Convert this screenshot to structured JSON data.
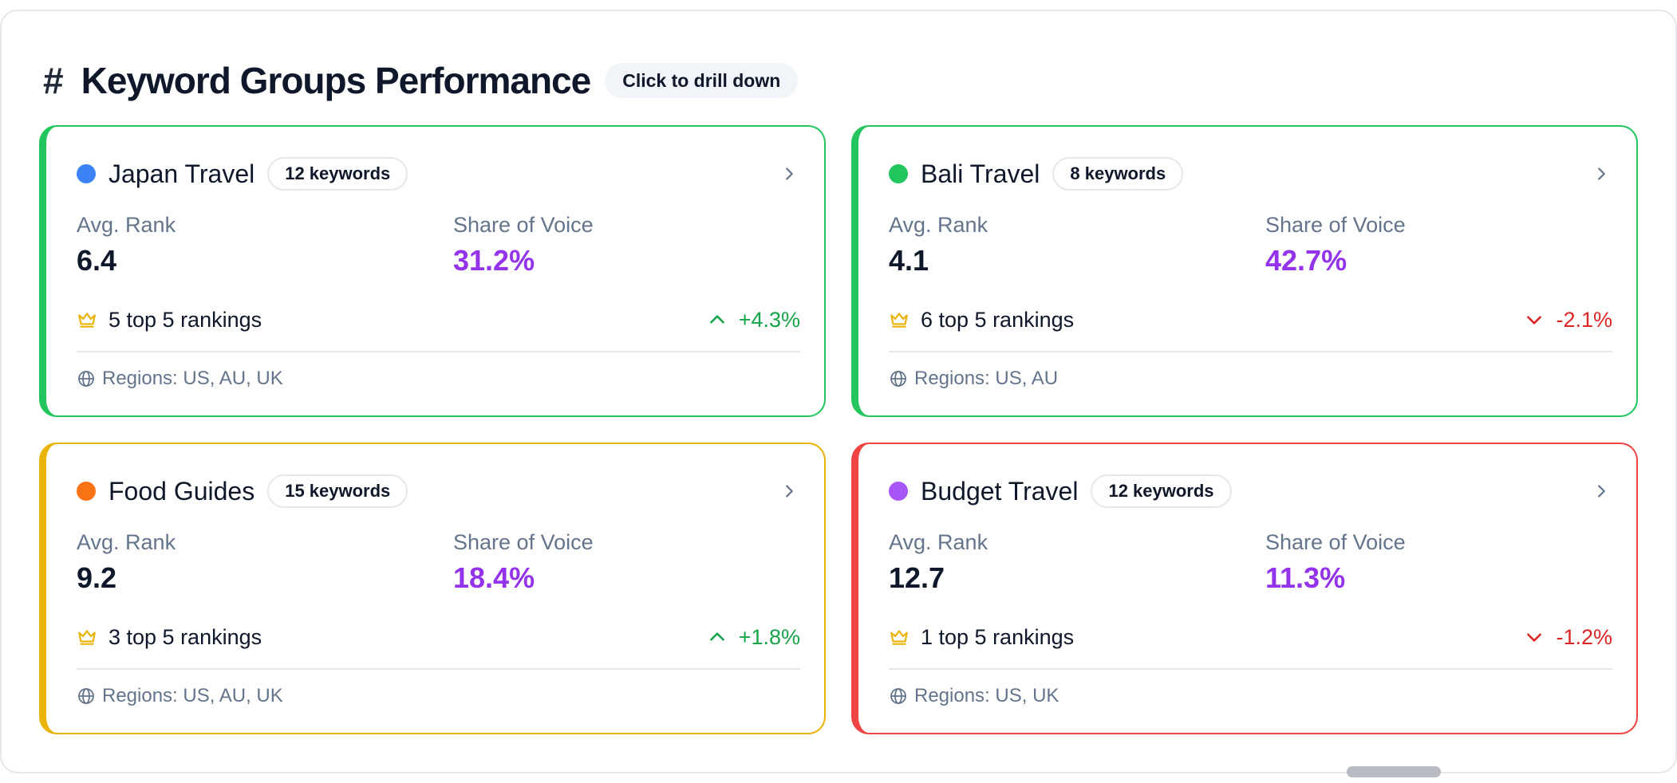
{
  "header": {
    "hash": "#",
    "title": "Keyword Groups Performance",
    "hint": "Click to drill down"
  },
  "labels": {
    "avg_rank": "Avg. Rank",
    "share_of_voice": "Share of Voice"
  },
  "groups": [
    {
      "name": "Japan Travel",
      "keywords": "12 keywords",
      "dot_color": "#3b82f6",
      "border_color": "#22c55e",
      "avg_rank": "6.4",
      "share_of_voice": "31.2%",
      "rankings": "5 top 5 rankings",
      "trend": "+4.3%",
      "trend_direction": "up",
      "regions": "Regions: US, AU, UK"
    },
    {
      "name": "Bali Travel",
      "keywords": "8 keywords",
      "dot_color": "#22c55e",
      "border_color": "#22c55e",
      "avg_rank": "4.1",
      "share_of_voice": "42.7%",
      "rankings": "6 top 5 rankings",
      "trend": "-2.1%",
      "trend_direction": "down",
      "regions": "Regions: US, AU"
    },
    {
      "name": "Food Guides",
      "keywords": "15 keywords",
      "dot_color": "#f97316",
      "border_color": "#eab308",
      "avg_rank": "9.2",
      "share_of_voice": "18.4%",
      "rankings": "3 top 5 rankings",
      "trend": "+1.8%",
      "trend_direction": "up",
      "regions": "Regions: US, AU, UK"
    },
    {
      "name": "Budget Travel",
      "keywords": "12 keywords",
      "dot_color": "#a855f7",
      "border_color": "#ef4444",
      "avg_rank": "12.7",
      "share_of_voice": "11.3%",
      "rankings": "1 top 5 rankings",
      "trend": "-1.2%",
      "trend_direction": "down",
      "regions": "Regions: US, UK"
    }
  ],
  "colors": {
    "share_of_voice": "#9333ea",
    "trend_up": "#16a34a",
    "trend_down": "#dc2626",
    "crown": "#eab308"
  },
  "icons": {
    "card_chevron": "chevron-right-icon",
    "rankings": "crown-icon",
    "regions": "globe-icon",
    "trend_up": "chevron-up-icon",
    "trend_down": "chevron-down-icon"
  }
}
